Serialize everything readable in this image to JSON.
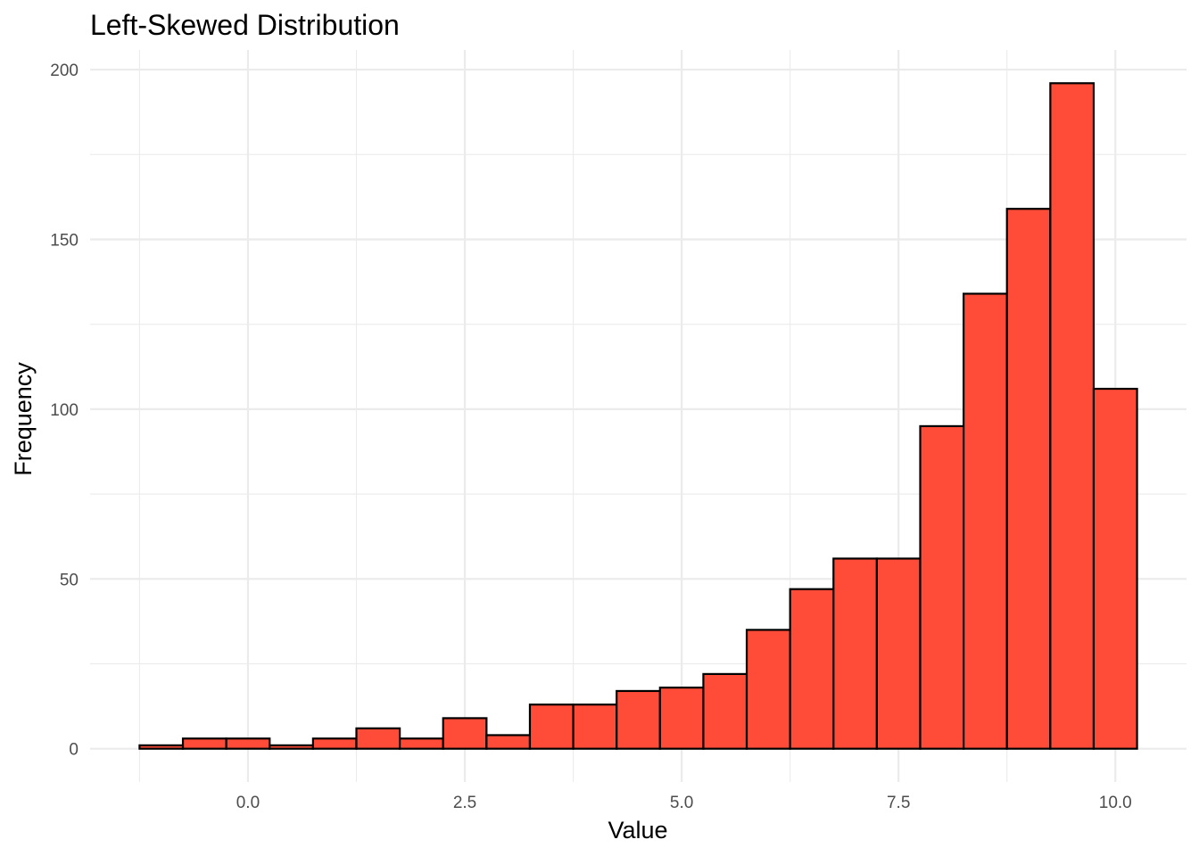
{
  "colors": {
    "bar_fill": "#FF4C38",
    "bar_stroke": "#000000",
    "grid": "#EBEBEB",
    "tick_text": "#4D4D4D"
  },
  "chart_data": {
    "type": "bar",
    "title": "Left-Skewed Distribution",
    "xlabel": "Value",
    "ylabel": "Frequency",
    "bin_width": 0.5,
    "bins": [
      {
        "x0": -1.25,
        "x1": -0.75,
        "count": 1
      },
      {
        "x0": -0.75,
        "x1": -0.25,
        "count": 3
      },
      {
        "x0": -0.25,
        "x1": 0.25,
        "count": 3
      },
      {
        "x0": 0.25,
        "x1": 0.75,
        "count": 1
      },
      {
        "x0": 0.75,
        "x1": 1.25,
        "count": 3
      },
      {
        "x0": 1.25,
        "x1": 1.75,
        "count": 6
      },
      {
        "x0": 1.75,
        "x1": 2.25,
        "count": 3
      },
      {
        "x0": 2.25,
        "x1": 2.75,
        "count": 9
      },
      {
        "x0": 2.75,
        "x1": 3.25,
        "count": 4
      },
      {
        "x0": 3.25,
        "x1": 3.75,
        "count": 13
      },
      {
        "x0": 3.75,
        "x1": 4.25,
        "count": 13
      },
      {
        "x0": 4.25,
        "x1": 4.75,
        "count": 17
      },
      {
        "x0": 4.75,
        "x1": 5.25,
        "count": 18
      },
      {
        "x0": 5.25,
        "x1": 5.75,
        "count": 22
      },
      {
        "x0": 5.75,
        "x1": 6.25,
        "count": 35
      },
      {
        "x0": 6.25,
        "x1": 6.75,
        "count": 47
      },
      {
        "x0": 6.75,
        "x1": 7.25,
        "count": 56
      },
      {
        "x0": 7.25,
        "x1": 7.75,
        "count": 56
      },
      {
        "x0": 7.75,
        "x1": 8.25,
        "count": 95
      },
      {
        "x0": 8.25,
        "x1": 8.75,
        "count": 134
      },
      {
        "x0": 8.75,
        "x1": 9.25,
        "count": 159
      },
      {
        "x0": 9.25,
        "x1": 9.75,
        "count": 196
      },
      {
        "x0": 9.75,
        "x1": 10.25,
        "count": 106
      }
    ],
    "x_ticks": [
      {
        "value": 0,
        "label": "0.0"
      },
      {
        "value": 2.5,
        "label": "2.5"
      },
      {
        "value": 5,
        "label": "5.0"
      },
      {
        "value": 7.5,
        "label": "7.5"
      },
      {
        "value": 10,
        "label": "10.0"
      }
    ],
    "x_minor_ticks": [
      -1.25,
      1.25,
      3.75,
      6.25,
      8.75
    ],
    "y_ticks": [
      {
        "value": 0,
        "label": "0"
      },
      {
        "value": 50,
        "label": "50"
      },
      {
        "value": 100,
        "label": "100"
      },
      {
        "value": 150,
        "label": "150"
      },
      {
        "value": 200,
        "label": "200"
      }
    ],
    "y_minor_ticks": [
      25,
      75,
      125,
      175
    ],
    "xlim": [
      -1.82,
      10.82
    ],
    "ylim": [
      -9.8,
      205.8
    ],
    "grid": true,
    "legend": "none"
  }
}
